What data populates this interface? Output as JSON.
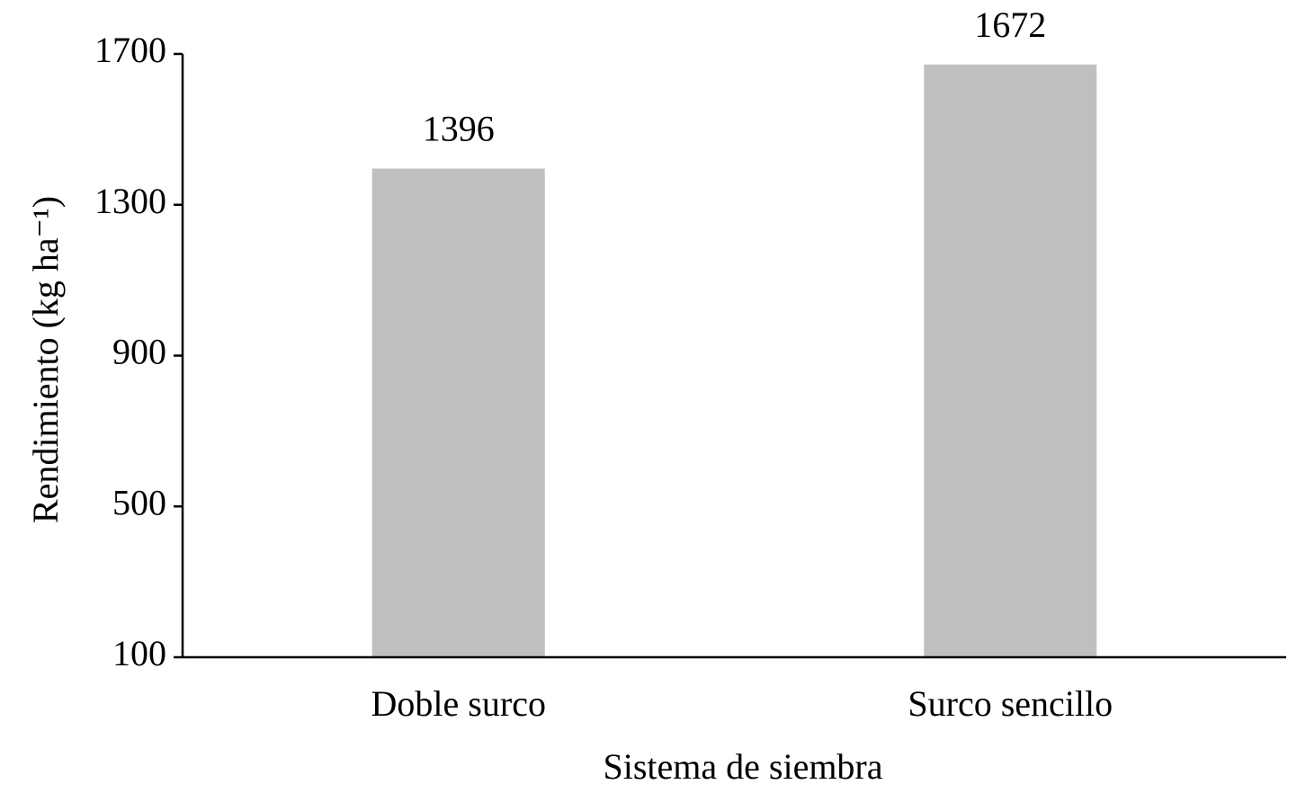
{
  "chart_data": {
    "type": "bar",
    "categories": [
      "Doble surco",
      "Surco sencillo"
    ],
    "values": [
      1396,
      1672
    ],
    "color": "#bfbfbf",
    "x_label": "Sistema de siembra",
    "y_label": "Rendimiento (kg ha⁻¹)",
    "ylim": [
      100,
      1700
    ],
    "yticks": [
      100,
      500,
      900,
      1300,
      1700
    ],
    "grid": false
  }
}
